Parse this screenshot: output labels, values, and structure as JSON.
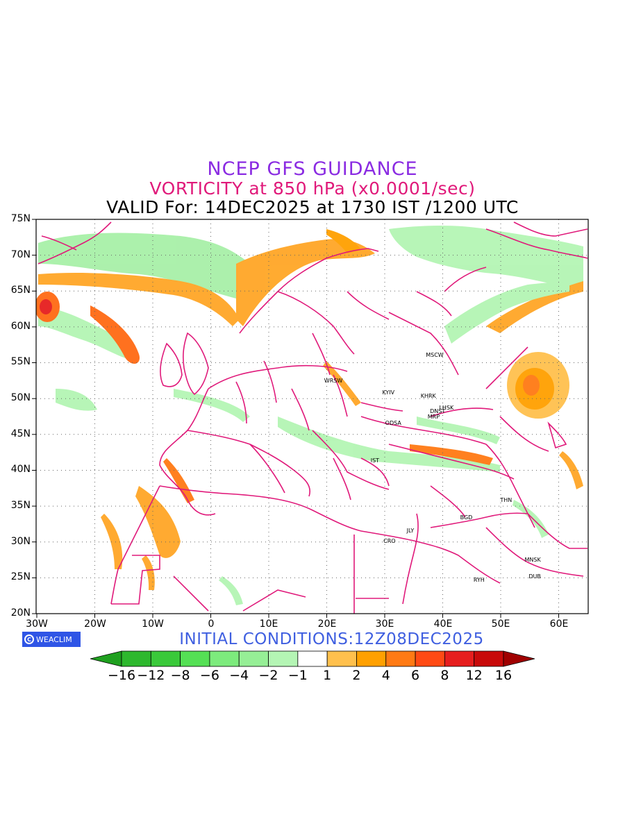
{
  "titles": {
    "line1": "NCEP GFS GUIDANCE",
    "line2": "VORTICITY at 850 hPa (x0.0001/sec)",
    "line3": "VALID For: 14DEC2025 at 1730 IST /1200 UTC"
  },
  "axes": {
    "y_labels": [
      "75N",
      "70N",
      "65N",
      "60N",
      "55N",
      "50N",
      "45N",
      "40N",
      "35N",
      "30N",
      "25N",
      "20N"
    ],
    "x_labels": [
      "30W",
      "20W",
      "10W",
      "0",
      "10E",
      "20E",
      "30E",
      "40E",
      "50E",
      "60E"
    ]
  },
  "cities": [
    {
      "code": "MSCW",
      "lon": 38.5,
      "lat": 56.0
    },
    {
      "code": "WRSW",
      "lon": 21.0,
      "lat": 52.4
    },
    {
      "code": "KYIV",
      "lon": 31.0,
      "lat": 50.8
    },
    {
      "code": "KHRK",
      "lon": 37.6,
      "lat": 50.3
    },
    {
      "code": "LHSK",
      "lon": 40.8,
      "lat": 48.7
    },
    {
      "code": "DNST",
      "lon": 39.2,
      "lat": 48.2
    },
    {
      "code": "ODSA",
      "lon": 31.5,
      "lat": 46.5
    },
    {
      "code": "MRP",
      "lon": 38.8,
      "lat": 47.4
    },
    {
      "code": "IST",
      "lon": 29.0,
      "lat": 41.3
    },
    {
      "code": "THN",
      "lon": 51.3,
      "lat": 35.8
    },
    {
      "code": "BGD",
      "lon": 44.4,
      "lat": 33.4
    },
    {
      "code": "JLY",
      "lon": 35.2,
      "lat": 31.5
    },
    {
      "code": "CRO",
      "lon": 31.2,
      "lat": 30.1
    },
    {
      "code": "MNSK",
      "lon": 55.5,
      "lat": 27.5
    },
    {
      "code": "RYH",
      "lon": 46.7,
      "lat": 24.6
    },
    {
      "code": "DUB",
      "lon": 56.2,
      "lat": 25.1
    }
  ],
  "branding": {
    "logo_text": "WEACLIM"
  },
  "initial_conditions": "INITIAL CONDITIONS:12Z08DEC2025",
  "colorbar": {
    "labels": [
      "−16",
      "−12",
      "−8",
      "−6",
      "−4",
      "−2",
      "−1",
      "1",
      "2",
      "4",
      "6",
      "8",
      "12",
      "16"
    ],
    "colors": [
      "#1fa01f",
      "#2eb82e",
      "#3ac93a",
      "#55e055",
      "#7deb7d",
      "#96ef96",
      "#b4f5b4",
      "#ffffff",
      "#ffc04d",
      "#ffa000",
      "#ff7a14",
      "#ff4a14",
      "#e61e1e",
      "#c80a0a",
      "#a00000"
    ]
  }
}
